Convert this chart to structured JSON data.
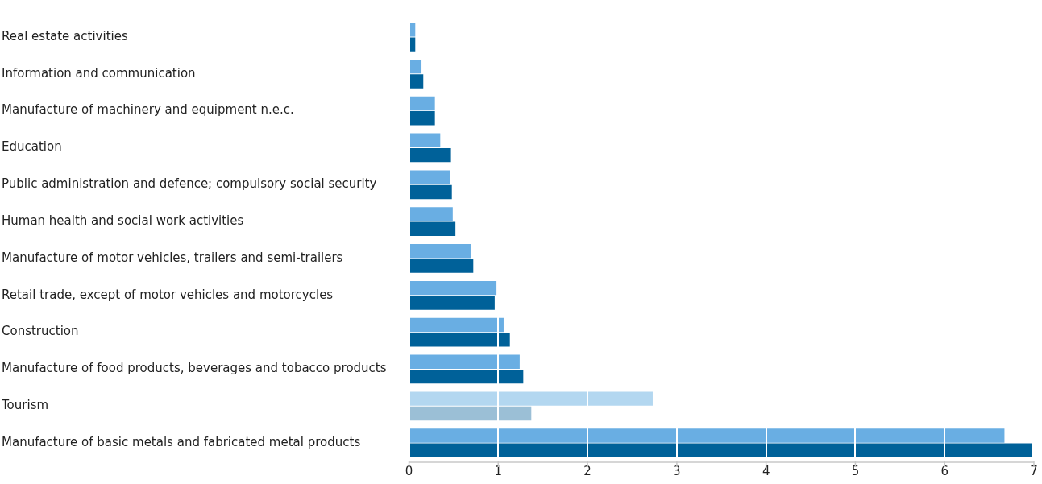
{
  "chart_data": {
    "type": "bar",
    "orientation": "horizontal",
    "categories": [
      "Real estate activities",
      "Information and communication",
      "Manufacture of machinery and equipment n.e.c.",
      "Education",
      "Public administration and defence; compulsory social security",
      "Human health and social work activities",
      "Manufacture of motor vehicles, trailers and semi-trailers",
      "Retail trade, except of motor vehicles and motorcycles",
      "Construction",
      "Manufacture of food products, beverages and tobacco products",
      "Tourism",
      "Manufacture of basic metals and fabricated metal products"
    ],
    "series": [
      {
        "colors": [
          "#69aee3",
          "#69aee3",
          "#69aee3",
          "#69aee3",
          "#69aee3",
          "#69aee3",
          "#69aee3",
          "#69aee3",
          "#69aee3",
          "#69aee3",
          "#b3d7f0",
          "#69aee3"
        ],
        "values": [
          0.07,
          0.14,
          0.29,
          0.35,
          0.46,
          0.49,
          0.69,
          0.98,
          1.06,
          1.24,
          2.73,
          6.67
        ]
      },
      {
        "colors": [
          "#006199",
          "#006199",
          "#006199",
          "#006199",
          "#006199",
          "#006199",
          "#006199",
          "#006199",
          "#006199",
          "#006199",
          "#9bbfd6",
          "#006199"
        ],
        "values": [
          0.07,
          0.16,
          0.29,
          0.47,
          0.48,
          0.52,
          0.72,
          0.96,
          1.13,
          1.28,
          1.37,
          6.98
        ]
      }
    ],
    "xlim": [
      0,
      7
    ],
    "xticks": [
      0,
      1,
      2,
      3,
      4,
      5,
      6,
      7
    ],
    "grid": "x"
  }
}
